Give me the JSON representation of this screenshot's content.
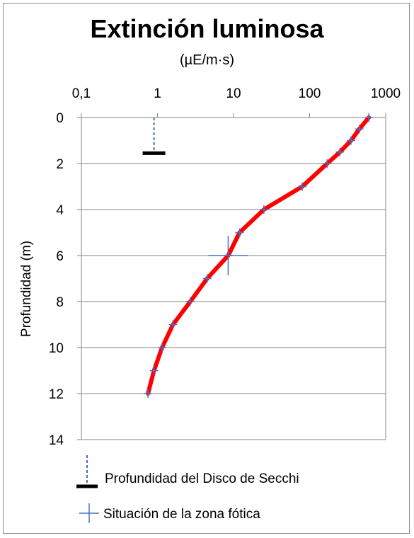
{
  "title": "Extinción luminosa",
  "subtitle": "(µE/m·s)",
  "chart_data": {
    "type": "line",
    "title": "Extinción luminosa",
    "subtitle": "(µE/m·s)",
    "xscale": "log",
    "xlim": [
      0.1,
      1000
    ],
    "x_ticks": [
      "0,1",
      "1",
      "10",
      "100",
      "1000"
    ],
    "x_tick_values": [
      0.1,
      1,
      10,
      100,
      1000
    ],
    "x_axis_position": "top",
    "ylabel": "Profundidad (m)",
    "ylim": [
      0,
      14
    ],
    "y_inverted": true,
    "y_ticks": [
      "0",
      "2",
      "4",
      "6",
      "8",
      "10",
      "12",
      "14"
    ],
    "y_tick_values": [
      0,
      2,
      4,
      6,
      8,
      10,
      12,
      14
    ],
    "grid": "horizontal",
    "series": [
      {
        "color": "#ff0000",
        "marker": "plus",
        "marker_color": "#4472c4",
        "x": [
          600,
          450,
          350,
          250,
          170,
          80,
          25,
          12,
          8.5,
          4.5,
          2.7,
          1.6,
          1.15,
          0.9,
          0.75
        ],
        "y": [
          0,
          0.5,
          1,
          1.5,
          2,
          3,
          4,
          5,
          6,
          7,
          8,
          9,
          10,
          11,
          12
        ]
      }
    ],
    "secchi_depth": {
      "x": 0.9,
      "y": 1.55,
      "color": "#4472c4",
      "bar_color": "#000000"
    },
    "photic_zone": {
      "x": 8.5,
      "y": 6,
      "color": "#4472c4"
    },
    "legend": {
      "position": "bottom",
      "items": [
        {
          "label": "Profundidad del Disco de Secchi",
          "symbol": "secchi"
        },
        {
          "label": "Situación de la zona fótica",
          "symbol": "cross"
        }
      ]
    }
  }
}
